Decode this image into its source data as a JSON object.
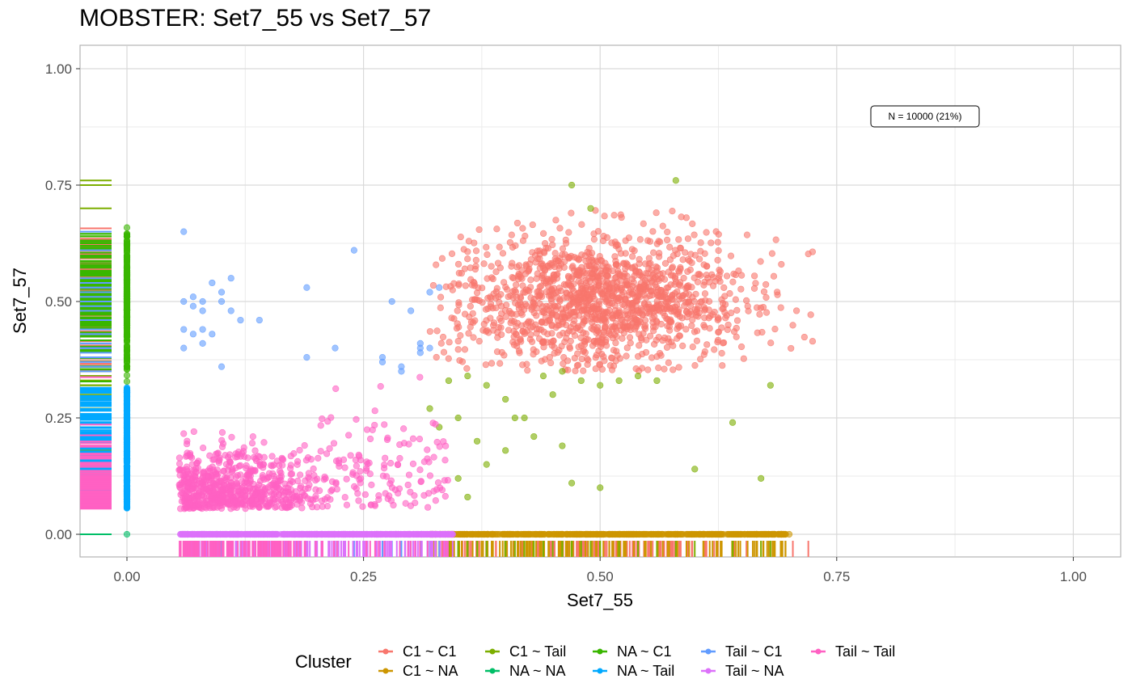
{
  "chart_data": {
    "type": "scatter",
    "title": "MOBSTER: Set7_55 vs Set7_57",
    "xlabel": "Set7_55",
    "ylabel": "Set7_57",
    "xlim": [
      -0.05,
      1.05
    ],
    "ylim": [
      -0.05,
      1.05
    ],
    "x_ticks": [
      "0.00",
      "0.25",
      "0.50",
      "0.75",
      "1.00"
    ],
    "y_ticks": [
      "0.00",
      "0.25",
      "0.50",
      "0.75",
      "1.00"
    ],
    "grid": true,
    "annotation": "N = 10000 (21%)",
    "legend_title": "Cluster",
    "legend_position": "bottom",
    "series": [
      {
        "name": "C1 ~ C1",
        "color": "#F8766D",
        "center": [
          0.5,
          0.5
        ],
        "spread": [
          0.075,
          0.07
        ],
        "count": 1400
      },
      {
        "name": "C1 ~ NA",
        "color": "#CD9600",
        "center": [
          0.5,
          0.0
        ],
        "spread": [
          0.09,
          0.0
        ],
        "count": 500
      },
      {
        "name": "C1 ~ Tail",
        "color": "#7CAE00",
        "points": [
          [
            0.47,
            0.75
          ],
          [
            0.49,
            0.7
          ],
          [
            0.58,
            0.76
          ],
          [
            0.34,
            0.33
          ],
          [
            0.36,
            0.34
          ],
          [
            0.38,
            0.32
          ],
          [
            0.4,
            0.29
          ],
          [
            0.41,
            0.25
          ],
          [
            0.42,
            0.25
          ],
          [
            0.43,
            0.21
          ],
          [
            0.44,
            0.34
          ],
          [
            0.45,
            0.3
          ],
          [
            0.46,
            0.35
          ],
          [
            0.48,
            0.33
          ],
          [
            0.5,
            0.32
          ],
          [
            0.52,
            0.33
          ],
          [
            0.54,
            0.34
          ],
          [
            0.56,
            0.33
          ],
          [
            0.37,
            0.2
          ],
          [
            0.38,
            0.15
          ],
          [
            0.35,
            0.12
          ],
          [
            0.36,
            0.08
          ],
          [
            0.4,
            0.18
          ],
          [
            0.47,
            0.11
          ],
          [
            0.5,
            0.1
          ],
          [
            0.46,
            0.19
          ],
          [
            0.6,
            0.14
          ],
          [
            0.64,
            0.24
          ],
          [
            0.67,
            0.12
          ],
          [
            0.68,
            0.32
          ],
          [
            0.33,
            0.23
          ],
          [
            0.32,
            0.27
          ],
          [
            0.35,
            0.25
          ]
        ]
      },
      {
        "name": "NA ~ NA",
        "color": "#00BE67",
        "points": [
          [
            0.0,
            0.0
          ]
        ]
      },
      {
        "name": "NA ~ C1",
        "color": "#39B600",
        "center": [
          0.0,
          0.5
        ],
        "spread": [
          0.0,
          0.07
        ],
        "count": 300
      },
      {
        "name": "NA ~ Tail",
        "color": "#00A9FF",
        "center": [
          0.0,
          0.16
        ],
        "spread": [
          0.0,
          0.06
        ],
        "count": 300
      },
      {
        "name": "Tail ~ C1",
        "color": "#619CFF",
        "points": [
          [
            0.06,
            0.65
          ],
          [
            0.06,
            0.5
          ],
          [
            0.07,
            0.51
          ],
          [
            0.08,
            0.5
          ],
          [
            0.08,
            0.48
          ],
          [
            0.07,
            0.49
          ],
          [
            0.06,
            0.44
          ],
          [
            0.07,
            0.43
          ],
          [
            0.08,
            0.44
          ],
          [
            0.09,
            0.43
          ],
          [
            0.06,
            0.4
          ],
          [
            0.08,
            0.41
          ],
          [
            0.1,
            0.52
          ],
          [
            0.11,
            0.55
          ],
          [
            0.11,
            0.48
          ],
          [
            0.12,
            0.46
          ],
          [
            0.1,
            0.5
          ],
          [
            0.09,
            0.54
          ],
          [
            0.14,
            0.46
          ],
          [
            0.19,
            0.53
          ],
          [
            0.19,
            0.38
          ],
          [
            0.22,
            0.4
          ],
          [
            0.24,
            0.61
          ],
          [
            0.27,
            0.37
          ],
          [
            0.27,
            0.38
          ],
          [
            0.28,
            0.5
          ],
          [
            0.29,
            0.36
          ],
          [
            0.3,
            0.48
          ],
          [
            0.31,
            0.4
          ],
          [
            0.31,
            0.41
          ],
          [
            0.32,
            0.4
          ],
          [
            0.32,
            0.52
          ],
          [
            0.33,
            0.53
          ],
          [
            0.1,
            0.36
          ],
          [
            0.29,
            0.35
          ],
          [
            0.31,
            0.39
          ]
        ]
      },
      {
        "name": "Tail ~ NA",
        "color": "#DC71FA",
        "center": [
          0.18,
          0.0
        ],
        "spread": [
          0.08,
          0.0
        ],
        "count": 500
      },
      {
        "name": "Tail ~ Tail",
        "color": "#FF61C3",
        "center": [
          0.12,
          0.12
        ],
        "spread": [
          0.06,
          0.05
        ],
        "count": 800
      }
    ]
  }
}
